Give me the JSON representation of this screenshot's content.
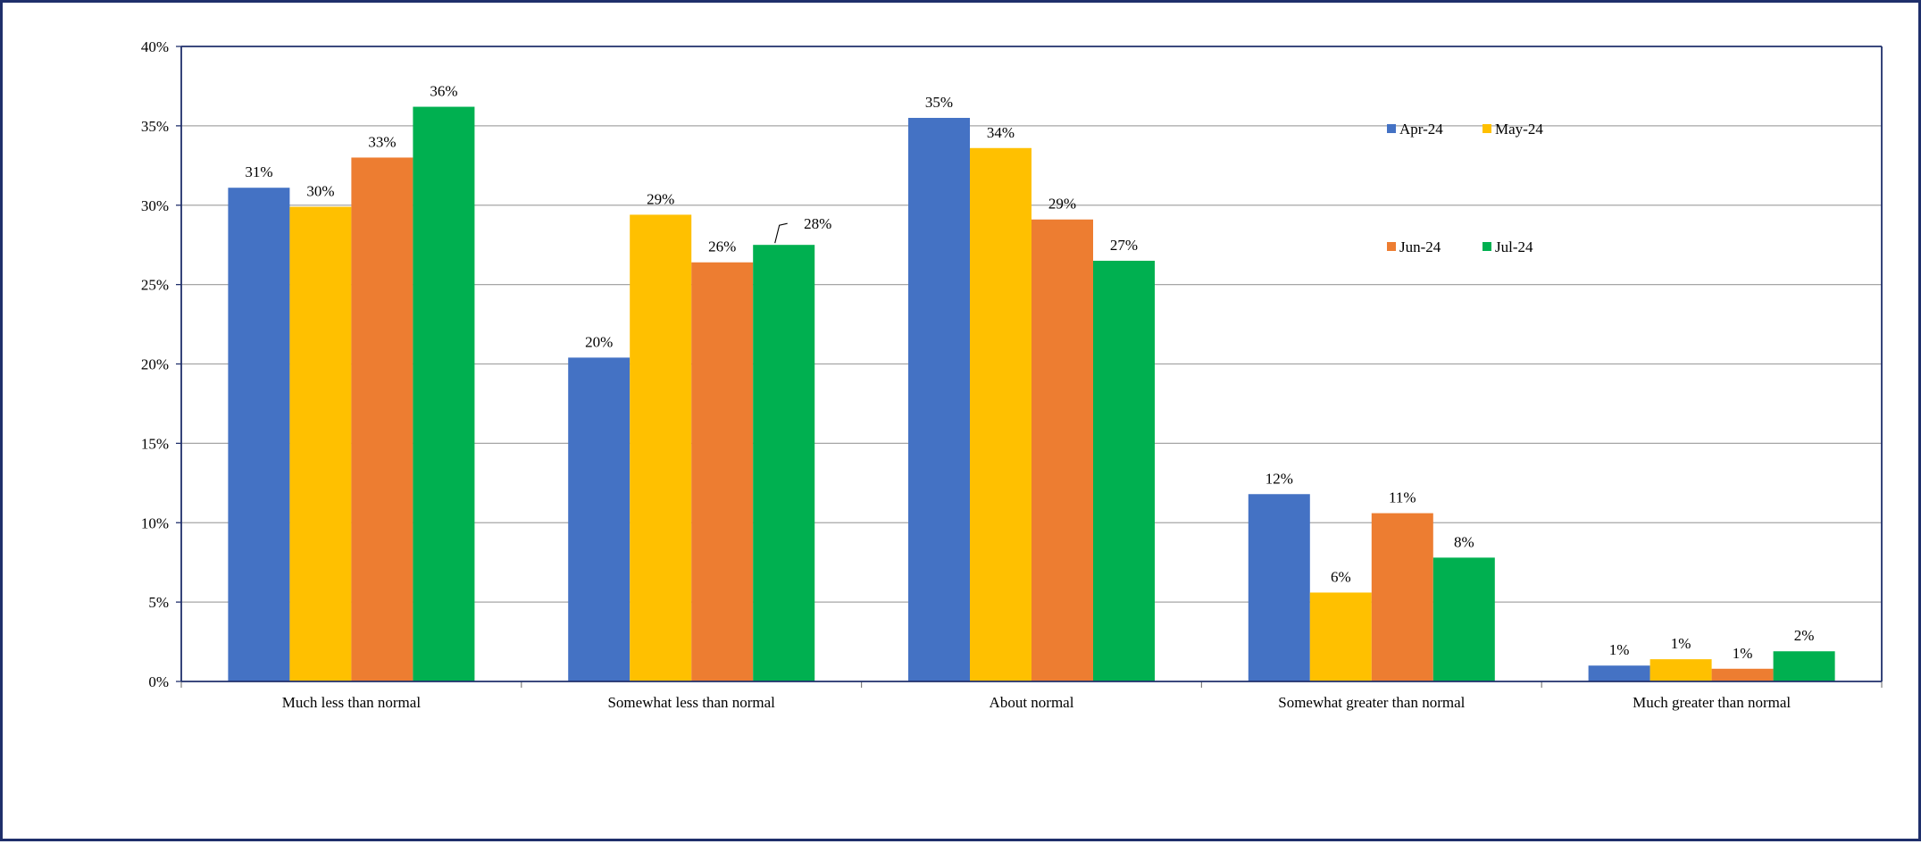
{
  "chart_data": {
    "type": "bar",
    "categories": [
      "Much less than normal",
      "Somewhat less than normal",
      "About normal",
      "Somewhat greater than normal",
      "Much greater than normal"
    ],
    "series": [
      {
        "name": "Apr-24",
        "color": "#4472c4",
        "values": [
          31.1,
          20.4,
          35.5,
          11.8,
          1.0
        ],
        "labels": [
          "31%",
          "20%",
          "35%",
          "12%",
          "1%"
        ]
      },
      {
        "name": "May-24",
        "color": "#ffc000",
        "values": [
          29.9,
          29.4,
          33.6,
          5.6,
          1.4
        ],
        "labels": [
          "30%",
          "29%",
          "34%",
          "6%",
          "1%"
        ]
      },
      {
        "name": "Jun-24",
        "color": "#ed7d31",
        "values": [
          33.0,
          26.4,
          29.1,
          10.6,
          0.8
        ],
        "labels": [
          "33%",
          "26%",
          "29%",
          "11%",
          "1%"
        ]
      },
      {
        "name": "Jul-24",
        "color": "#00b050",
        "values": [
          36.2,
          27.5,
          26.5,
          7.8,
          1.9
        ],
        "labels": [
          "36%",
          "28%",
          "27%",
          "8%",
          "2%"
        ]
      }
    ],
    "ylim": [
      0,
      40
    ],
    "yticks": [
      0,
      5,
      10,
      15,
      20,
      25,
      30,
      35,
      40
    ],
    "ytick_labels": [
      "0%",
      "5%",
      "10%",
      "15%",
      "20%",
      "25%",
      "30%",
      "35%",
      "40%"
    ],
    "title": "",
    "xlabel": "",
    "ylabel": "",
    "grid": true,
    "gridline_color": "#a6a6a6",
    "axis_color": "#1f2f6b",
    "legend_position": "top-right"
  }
}
